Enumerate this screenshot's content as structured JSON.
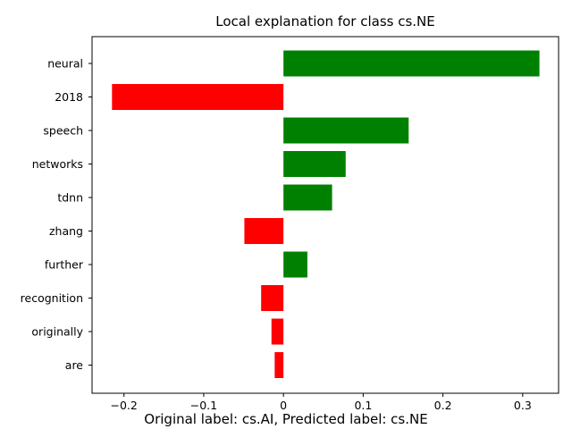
{
  "chart_data": {
    "type": "bar",
    "orientation": "horizontal",
    "title": "Local explanation for class cs.NE",
    "caption": "Original label: cs.AI, Predicted label: cs.NE",
    "categories": [
      "neural",
      "2018",
      "speech",
      "networks",
      "tdnn",
      "zhang",
      "further",
      "recognition",
      "originally",
      "are"
    ],
    "values": [
      0.321,
      -0.215,
      0.157,
      0.078,
      0.061,
      -0.049,
      0.03,
      -0.028,
      -0.015,
      -0.011
    ],
    "xlim": [
      -0.24,
      0.345
    ],
    "xticks": [
      -0.2,
      -0.1,
      0.0,
      0.1,
      0.2,
      0.3
    ],
    "xtick_labels": [
      "−0.2",
      "−0.1",
      "0",
      "0.1",
      "0.2",
      "0.3"
    ],
    "colors": {
      "positive": "#008000",
      "negative": "#ff0000"
    },
    "grid": false,
    "legend": "none"
  }
}
